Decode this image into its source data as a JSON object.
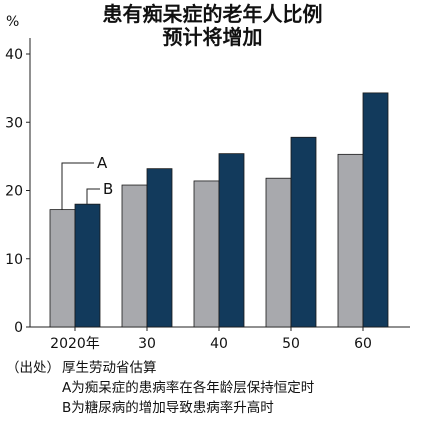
{
  "header": {
    "title_line1": "患有痴呆症的老年人比例",
    "title_line2": "预计将增加"
  },
  "chart_data": {
    "type": "bar",
    "y_unit": "%",
    "categories": [
      "2020年",
      "30",
      "40",
      "50",
      "60"
    ],
    "ylim": [
      0,
      40
    ],
    "yticks": [
      0,
      10,
      20,
      30,
      40
    ],
    "grid": false,
    "series": [
      {
        "name": "A",
        "color": "#a8a9ad",
        "values": [
          17.2,
          20.8,
          21.4,
          21.8,
          25.3
        ]
      },
      {
        "name": "B",
        "color": "#123a5c",
        "values": [
          18.0,
          23.2,
          25.4,
          27.8,
          34.3
        ]
      }
    ]
  },
  "notes": {
    "source_label": "（出处）",
    "source_text": "厚生劳动省估算",
    "note_a": "A为痴呆症的患病率在各年龄层保持恒定时",
    "note_b": "B为糖尿病的增加导致患病率升高时"
  }
}
